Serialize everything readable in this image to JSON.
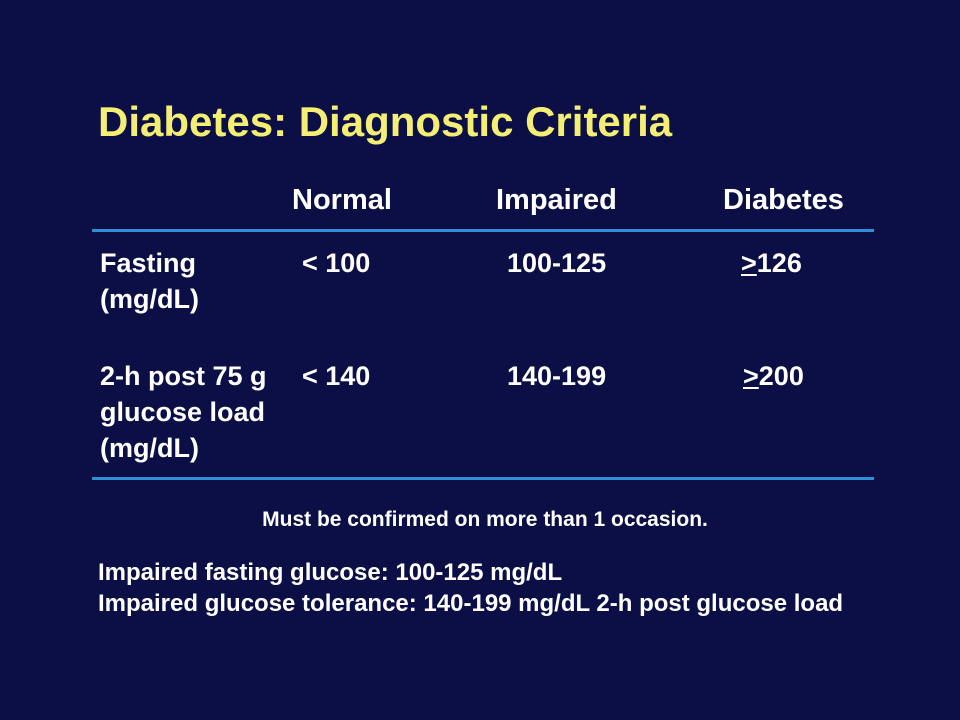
{
  "slide": {
    "title": "Diabetes: Diagnostic Criteria",
    "colors": {
      "background": "#0b0f45",
      "title": "#f4ef74",
      "rule": "#2f8ed8",
      "text": "#ffffff"
    }
  },
  "table": {
    "headers": [
      "Normal",
      "Impaired",
      "Diabetes"
    ],
    "rows": [
      {
        "label_lines": [
          "Fasting",
          "(mg/dL)"
        ],
        "normal": "< 100",
        "impaired": "100-125",
        "diabetes_symbol": ">",
        "diabetes_value": "126"
      },
      {
        "label_lines": [
          "2-h post 75 g",
          "glucose load",
          "(mg/dL)"
        ],
        "normal": "< 140",
        "impaired": "140-199",
        "diabetes_symbol": ">",
        "diabetes_value": "200"
      }
    ]
  },
  "notes": {
    "confirmation": "Must be confirmed on more than 1 occasion.",
    "definitions": [
      "Impaired fasting glucose: 100-125 mg/dL",
      "Impaired glucose tolerance: 140-199 mg/dL 2-h post glucose load"
    ]
  }
}
